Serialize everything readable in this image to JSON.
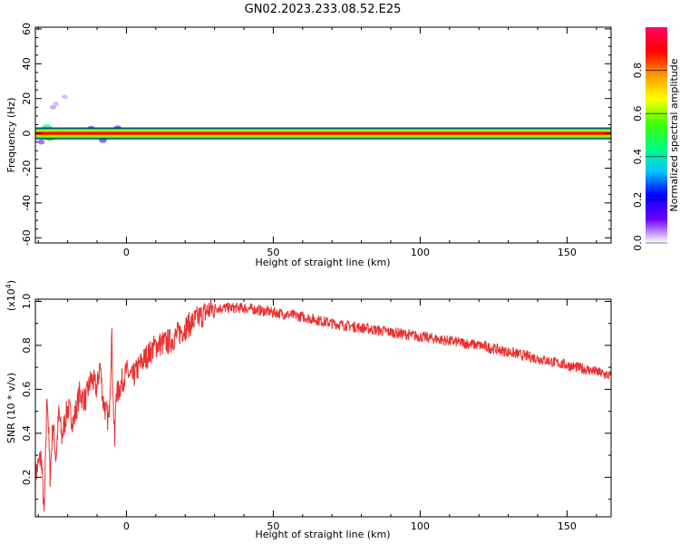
{
  "title": "GN02.2023.233.08.52.E25",
  "chart_data": [
    {
      "type": "heatmap",
      "xlabel": "Height of straight line (km)",
      "ylabel": "Frequency (Hz)",
      "xlim": [
        -31,
        165
      ],
      "ylim": [
        -63,
        61
      ],
      "x_ticks": [
        0,
        50,
        100,
        150
      ],
      "y_ticks": [
        -60,
        -40,
        -20,
        0,
        20,
        40,
        60
      ],
      "colorbar": {
        "label": "Normalized spectral amplitude",
        "range": [
          0,
          1
        ],
        "ticks": [
          0.0,
          0.2,
          0.4,
          0.6,
          0.8
        ],
        "tick_labels": [
          "0.0",
          "0.2",
          "0.4",
          "0.6",
          "0.8"
        ],
        "colormap": [
          "#ffffff",
          "#6a00ff",
          "#0000ff",
          "#00c8ff",
          "#00ff7a",
          "#44ff00",
          "#ffff00",
          "#ff9900",
          "#ff0000",
          "#ff0066"
        ]
      },
      "line_frequency_hz": 0,
      "core_amplitude": 0.9,
      "blobs": [
        {
          "x": -28,
          "f": 0,
          "amp": 0.85
        },
        {
          "x": -26,
          "f": -2,
          "amp": 0.55
        },
        {
          "x": -27,
          "f": 3,
          "amp": 0.45
        },
        {
          "x": -24,
          "f": 0,
          "amp": 0.5
        },
        {
          "x": -29,
          "f": -5,
          "amp": 0.15
        },
        {
          "x": -25,
          "f": 15,
          "amp": 0.08
        },
        {
          "x": -24,
          "f": 17,
          "amp": 0.06
        },
        {
          "x": -21,
          "f": 21,
          "amp": 0.06
        },
        {
          "x": -10,
          "f": 0,
          "amp": 0.45
        },
        {
          "x": -7,
          "f": 0,
          "amp": 0.55
        },
        {
          "x": -4,
          "f": -1,
          "amp": 0.5
        },
        {
          "x": -8,
          "f": -4,
          "amp": 0.2
        },
        {
          "x": -3,
          "f": 3,
          "amp": 0.2
        },
        {
          "x": -12,
          "f": 3,
          "amp": 0.15
        },
        {
          "x": 2,
          "f": 0,
          "amp": 0.3
        },
        {
          "x": 5,
          "f": 1,
          "amp": 0.2
        },
        {
          "x": 10,
          "f": 0,
          "amp": 0.25
        },
        {
          "x": 14,
          "f": 1,
          "amp": 0.15
        },
        {
          "x": 20,
          "f": 1,
          "amp": 0.3
        },
        {
          "x": 22,
          "f": -1,
          "amp": 0.2
        },
        {
          "x": 26,
          "f": 0,
          "amp": 0.15
        },
        {
          "x": 52,
          "f": 1,
          "amp": 0.1
        },
        {
          "x": 100,
          "f": 1,
          "amp": 0.1
        },
        {
          "x": 103,
          "f": 1,
          "amp": 0.1
        }
      ]
    },
    {
      "type": "line",
      "xlabel": "Height of straight line (km)",
      "ylabel": "SNR (10 * v/v)",
      "scale_label": "(x10^4)",
      "xlim": [
        -31,
        165
      ],
      "ylim": [
        0.02,
        1.01
      ],
      "x_ticks": [
        0,
        50,
        100,
        150
      ],
      "y_ticks": [
        0.2,
        0.4,
        0.6,
        0.8,
        1.0
      ],
      "color": "#e83232",
      "x": [
        -31,
        -29,
        -28,
        -27,
        -26,
        -25,
        -24,
        -23,
        -22,
        -20,
        -18,
        -16,
        -14,
        -12,
        -10,
        -9,
        -8,
        -7,
        -6,
        -5,
        -4.5,
        -4,
        -3.5,
        -3,
        -2,
        0,
        2,
        5,
        10,
        15,
        20,
        25,
        28,
        30,
        35,
        40,
        45,
        50,
        60,
        70,
        80,
        90,
        100,
        110,
        120,
        130,
        140,
        150,
        160,
        165
      ],
      "values": [
        0.21,
        0.3,
        0.02,
        0.6,
        0.2,
        0.45,
        0.28,
        0.5,
        0.38,
        0.52,
        0.45,
        0.58,
        0.55,
        0.65,
        0.6,
        0.72,
        0.55,
        0.5,
        0.45,
        0.85,
        0.55,
        0.35,
        0.6,
        0.58,
        0.62,
        0.68,
        0.65,
        0.72,
        0.8,
        0.82,
        0.88,
        0.93,
        0.96,
        0.97,
        0.97,
        0.97,
        0.96,
        0.95,
        0.93,
        0.9,
        0.88,
        0.86,
        0.84,
        0.82,
        0.8,
        0.77,
        0.74,
        0.71,
        0.68,
        0.66
      ]
    }
  ]
}
